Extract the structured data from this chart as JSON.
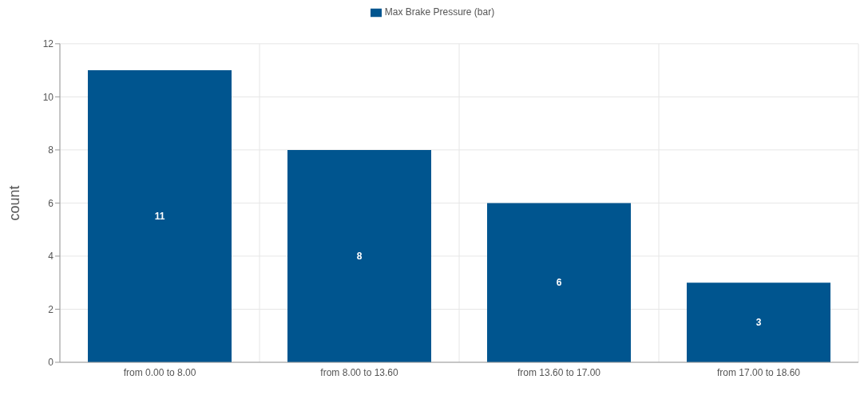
{
  "chart_data": {
    "type": "bar",
    "ylabel": "count",
    "categories": [
      "from 0.00 to 8.00",
      "from 8.00 to 13.60",
      "from 13.60 to 17.00",
      "from 17.00 to 18.60"
    ],
    "series": [
      {
        "name": "Max Brake Pressure (bar)",
        "color": "#00558f",
        "values": [
          11,
          8,
          6,
          3
        ]
      }
    ],
    "ylim": [
      0,
      12
    ],
    "yticks": [
      0,
      2,
      4,
      6,
      8,
      10,
      12
    ],
    "grid": true,
    "legend": "top",
    "data_labels": true
  }
}
